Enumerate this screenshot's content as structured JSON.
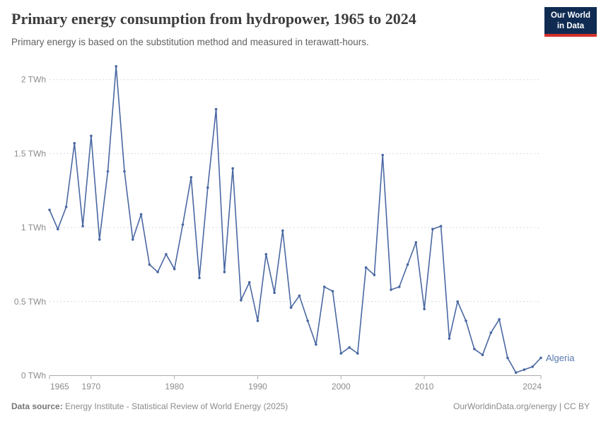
{
  "header": {
    "title": "Primary energy consumption from hydropower, 1965 to 2024",
    "subtitle": "Primary energy is based on the substitution method and measured in terawatt-hours.",
    "logo": {
      "line1": "Our World",
      "line2": "in Data",
      "bg_color": "#102b52",
      "accent_color": "#d5312a"
    }
  },
  "footer": {
    "source_label": "Data source:",
    "source_text": " Energy Institute - Statistical Review of World Energy (2025)",
    "right_text": "OurWorldinData.org/energy | CC BY"
  },
  "chart_data": {
    "type": "line",
    "title": "Primary energy consumption from hydropower, 1965 to 2024",
    "entity_label": "Algeria",
    "unit": "TWh",
    "xlim": [
      1965,
      2024
    ],
    "ylim": [
      0,
      2.15
    ],
    "grid": "dashed-horizontal",
    "legend_position": "end-of-line-label",
    "line_color": "#4a68a2",
    "label_color": "#5a79b0",
    "xticks": [
      {
        "year": 1965,
        "label": "1965"
      },
      {
        "year": 1970,
        "label": "1970"
      },
      {
        "year": 1980,
        "label": "1980"
      },
      {
        "year": 1990,
        "label": "1990"
      },
      {
        "year": 2000,
        "label": "2000"
      },
      {
        "year": 2010,
        "label": "2010"
      },
      {
        "year": 2024,
        "label": "2024"
      }
    ],
    "yticks": [
      {
        "value": 0,
        "label": "0 TWh"
      },
      {
        "value": 0.5,
        "label": "0.5 TWh"
      },
      {
        "value": 1,
        "label": "1 TWh"
      },
      {
        "value": 1.5,
        "label": "1.5 TWh"
      },
      {
        "value": 2,
        "label": "2 TWh"
      }
    ],
    "years": [
      1965,
      1966,
      1967,
      1968,
      1969,
      1970,
      1971,
      1972,
      1973,
      1974,
      1975,
      1976,
      1977,
      1978,
      1979,
      1980,
      1981,
      1982,
      1983,
      1984,
      1985,
      1986,
      1987,
      1988,
      1989,
      1990,
      1991,
      1992,
      1993,
      1994,
      1995,
      1996,
      1997,
      1998,
      1999,
      2000,
      2001,
      2002,
      2003,
      2004,
      2005,
      2006,
      2007,
      2008,
      2009,
      2010,
      2011,
      2012,
      2013,
      2014,
      2015,
      2016,
      2017,
      2018,
      2019,
      2020,
      2021,
      2022,
      2023,
      2024
    ],
    "values": [
      1.12,
      0.99,
      1.14,
      1.57,
      1.01,
      1.62,
      0.92,
      1.38,
      2.09,
      1.38,
      0.92,
      1.09,
      0.75,
      0.7,
      0.82,
      0.72,
      1.02,
      1.34,
      0.66,
      1.27,
      1.8,
      0.7,
      1.4,
      0.51,
      0.63,
      0.37,
      0.82,
      0.56,
      0.98,
      0.46,
      0.54,
      0.37,
      0.21,
      0.6,
      0.57,
      0.15,
      0.19,
      0.15,
      0.73,
      0.68,
      1.49,
      0.58,
      0.6,
      0.75,
      0.9,
      0.45,
      0.99,
      1.01,
      0.25,
      0.5,
      0.37,
      0.18,
      0.14,
      0.29,
      0.38,
      0.12,
      0.02,
      0.04,
      0.06,
      0.12
    ]
  }
}
